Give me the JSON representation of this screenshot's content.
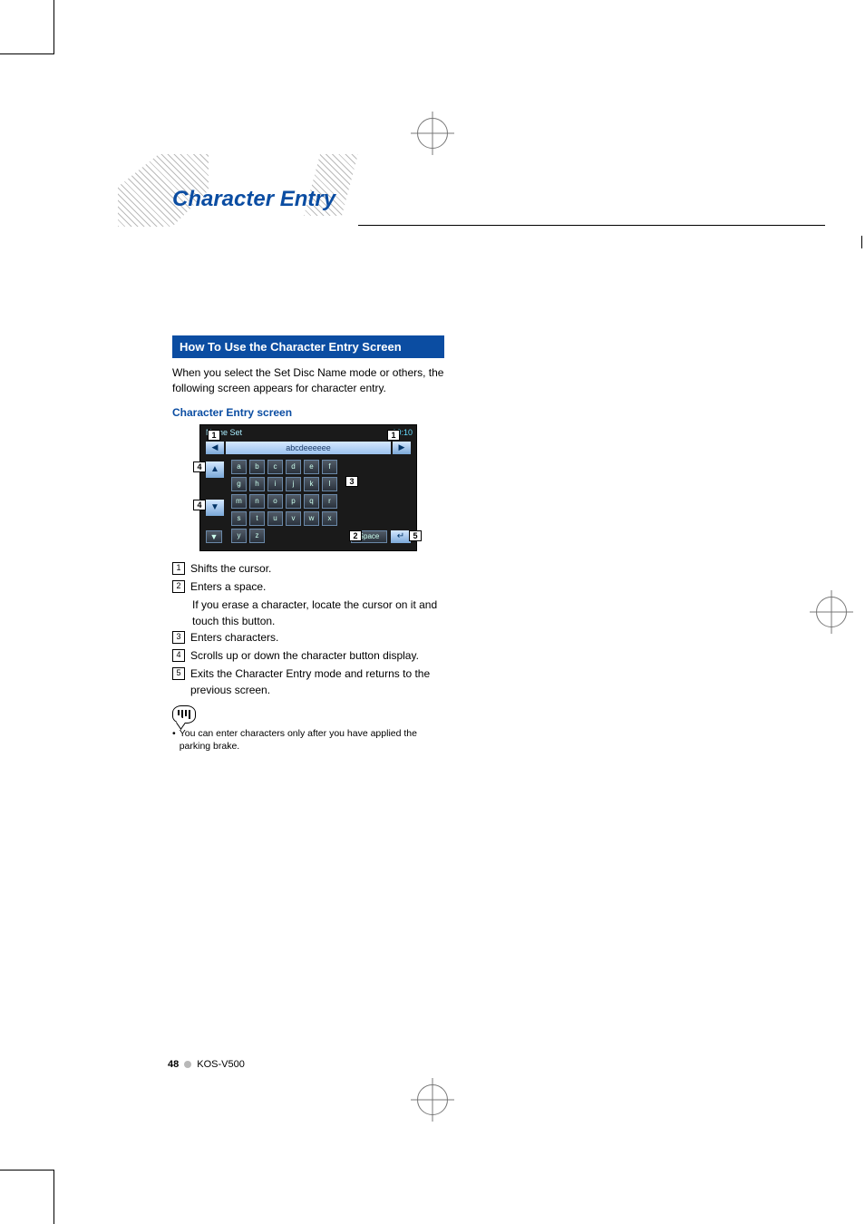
{
  "heading": "Character Entry",
  "section_title": "How To Use the Character Entry Screen",
  "intro": "When you select the Set Disc Name mode or others, the following screen appears for character entry.",
  "subheading": "Character Entry screen",
  "screenshot": {
    "title": "Name Set",
    "clock": "10:10",
    "textbar": "abcdeeeeee",
    "keys_row1": [
      "a",
      "b",
      "c",
      "d",
      "e",
      "f"
    ],
    "keys_row2": [
      "g",
      "h",
      "i",
      "j",
      "k",
      "l"
    ],
    "keys_row3": [
      "m",
      "n",
      "o",
      "p",
      "q",
      "r"
    ],
    "keys_row4": [
      "s",
      "t",
      "u",
      "v",
      "w",
      "x"
    ],
    "keys_row5": [
      "y",
      "z"
    ],
    "space_label": "Space"
  },
  "callouts": [
    "1",
    "1",
    "4",
    "3",
    "4",
    "2",
    "5"
  ],
  "legend": [
    {
      "n": "1",
      "text": "Shifts the cursor."
    },
    {
      "n": "2",
      "text": "Enters a space.",
      "sub": "If you erase a character, locate the cursor on it and touch this button."
    },
    {
      "n": "3",
      "text": "Enters characters."
    },
    {
      "n": "4",
      "text": "Scrolls up or down the character button display."
    },
    {
      "n": "5",
      "text": "Exits the Character Entry mode and returns to the previous screen."
    }
  ],
  "note": "You can enter characters only after you have applied the parking brake.",
  "footer": {
    "page": "48",
    "model": "KOS-V500"
  },
  "colors": {
    "blue": "#0b4da2",
    "dot": "#b8b8b8"
  }
}
